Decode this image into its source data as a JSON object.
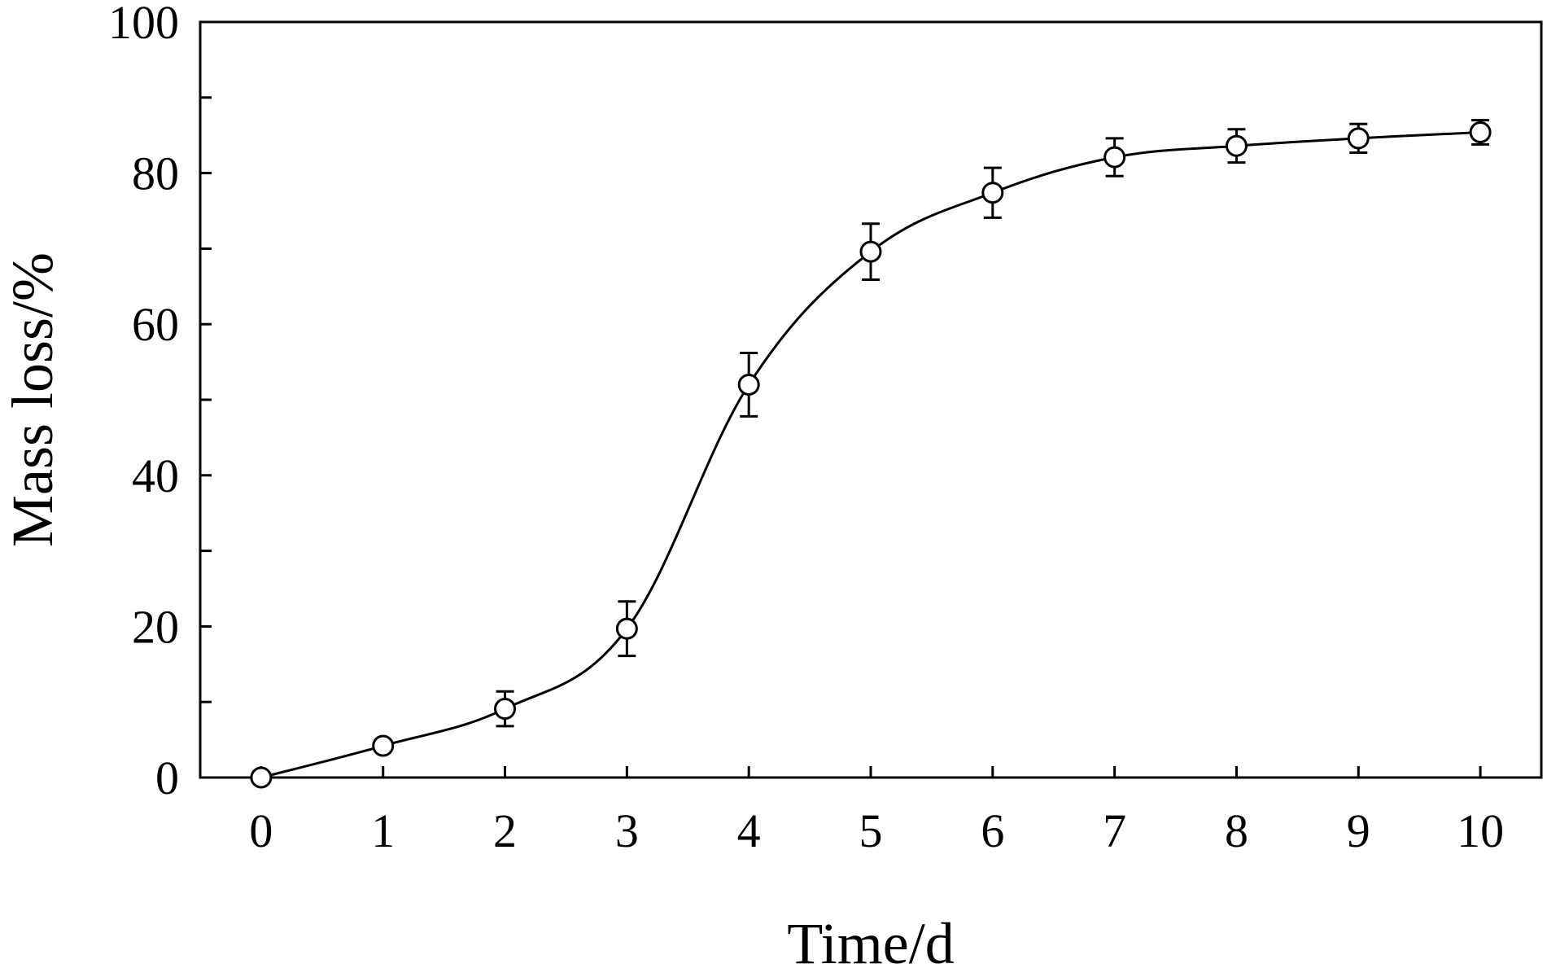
{
  "chart_data": {
    "type": "line",
    "title": "",
    "xlabel": "Time/d",
    "ylabel": "Mass loss/%",
    "xlim": [
      -0.5,
      10.5
    ],
    "ylim": [
      0,
      100
    ],
    "x_ticks": [
      0,
      1,
      2,
      3,
      4,
      5,
      6,
      7,
      8,
      9,
      10
    ],
    "x_tick_labels": [
      "0",
      "1",
      "2",
      "3",
      "4",
      "5",
      "6",
      "7",
      "8",
      "9",
      "10"
    ],
    "y_major_ticks": [
      0,
      20,
      40,
      60,
      80,
      100
    ],
    "y_tick_labels": [
      "0",
      "20",
      "40",
      "60",
      "80",
      "100"
    ],
    "y_minor_ticks": [
      10,
      30,
      50,
      70,
      90
    ],
    "grid": false,
    "legend": "none",
    "marker": "open-circle",
    "line_color": "#000000",
    "series": [
      {
        "x": [
          0,
          1,
          2,
          3,
          4,
          5,
          6,
          7,
          8,
          9,
          10
        ],
        "y": [
          0,
          4.2,
          9.1,
          19.7,
          52.0,
          69.6,
          77.4,
          82.1,
          83.6,
          84.6,
          85.4
        ],
        "error": [
          0.3,
          0.5,
          2.3,
          3.6,
          4.2,
          3.7,
          3.3,
          2.5,
          2.2,
          1.9,
          1.6
        ]
      }
    ]
  }
}
